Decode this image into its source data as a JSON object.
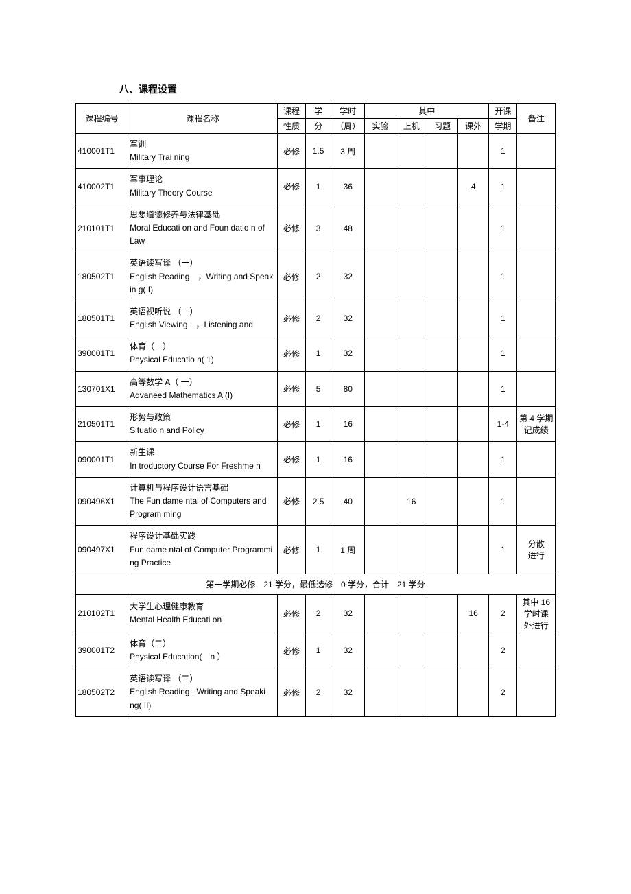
{
  "section_title": "八、课程设置",
  "headers": {
    "code": "课程编号",
    "name": "课程名称",
    "type": "课程\n性质",
    "credits": "学\n分",
    "hours": "学时\n（周）",
    "sub": "其中",
    "exp": "实验",
    "comp": "上机",
    "ex": "习题",
    "out": "课外",
    "sem": "开课\n学期",
    "note": "备注"
  },
  "rows": [
    {
      "code": "410001T1",
      "name_cn": "军训",
      "name_en": "Military Trai ning",
      "type": "必修",
      "credits": "1.5",
      "hours": "3 周",
      "exp": "",
      "comp": "",
      "ex": "",
      "out": "",
      "sem": "1",
      "note": ""
    },
    {
      "code": "410002T1",
      "name_cn": "军事理论",
      "name_en": "Military Theory Course",
      "type": "必修",
      "credits": "1",
      "hours": "36",
      "exp": "",
      "comp": "",
      "ex": "",
      "out": "4",
      "sem": "1",
      "note": ""
    },
    {
      "code": "210101T1",
      "name_cn": "思想道德修养与法律基础",
      "name_en": "Moral Educati on and Foun datio n of Law",
      "type": "必修",
      "credits": "3",
      "hours": "48",
      "exp": "",
      "comp": "",
      "ex": "",
      "out": "",
      "sem": "1",
      "note": ""
    },
    {
      "code": "180502T1",
      "name_cn": "英语读写译 （一）",
      "name_en": "English Reading ，Writing and Speak in g( I)",
      "type": "必修",
      "credits": "2",
      "hours": "32",
      "exp": "",
      "comp": "",
      "ex": "",
      "out": "",
      "sem": "1",
      "note": ""
    },
    {
      "code": "180501T1",
      "name_cn": "英语视听说 （一）",
      "name_en": "English Viewing ，Listening and",
      "type": "必修",
      "credits": "2",
      "hours": "32",
      "exp": "",
      "comp": "",
      "ex": "",
      "out": "",
      "sem": "1",
      "note": ""
    },
    {
      "code": "390001T1",
      "name_cn": "体育（一）",
      "name_en": "Physical Educatio n( 1)",
      "type": "必修",
      "credits": "1",
      "hours": "32",
      "exp": "",
      "comp": "",
      "ex": "",
      "out": "",
      "sem": "1",
      "note": ""
    },
    {
      "code": "130701X1",
      "name_cn": "高等数学 A（ 一）",
      "name_en": "Advaneed Mathematics A (I)",
      "type": "必修",
      "credits": "5",
      "hours": "80",
      "exp": "",
      "comp": "",
      "ex": "",
      "out": "",
      "sem": "1",
      "note": ""
    },
    {
      "code": "210501T1",
      "name_cn": "形势与政策",
      "name_en": "Situatio n and Policy",
      "type": "必修",
      "credits": "1",
      "hours": "16",
      "exp": "",
      "comp": "",
      "ex": "",
      "out": "",
      "sem": "1-4",
      "note": "第 4 学期\n记成绩"
    },
    {
      "code": "090001T1",
      "name_cn": "新生课",
      "name_en": "In troductory Course For Freshme n",
      "type": "必修",
      "credits": "1",
      "hours": "16",
      "exp": "",
      "comp": "",
      "ex": "",
      "out": "",
      "sem": "1",
      "note": ""
    },
    {
      "code": "090496X1",
      "name_cn": "计算机与程序设计语言基础",
      "name_en": "The Fun dame ntal of Computers and Program ming",
      "type": "必修",
      "credits": "2.5",
      "hours": "40",
      "exp": "",
      "comp": "16",
      "ex": "",
      "out": "",
      "sem": "1",
      "note": ""
    },
    {
      "code": "090497X1",
      "name_cn": "程序设计基础实践",
      "name_en": "Fun dame ntal of Computer Programmi ng Practice",
      "type": "必修",
      "credits": "1",
      "hours": "1 周",
      "exp": "",
      "comp": "",
      "ex": "",
      "out": "",
      "sem": "1",
      "note": "分散\n进行"
    }
  ],
  "summary1": "第一学期必修 21 学分，最低选修 0 学分，合计 21 学分",
  "rows2": [
    {
      "code": "210102T1",
      "name_cn": "大学生心理健康教育",
      "name_en": "Mental Health Educati on",
      "type": "必修",
      "credits": "2",
      "hours": "32",
      "exp": "",
      "comp": "",
      "ex": "",
      "out": "16",
      "sem": "2",
      "note": "其中 16\n学时课\n外进行"
    },
    {
      "code": "390001T2",
      "name_cn": "体育（二）",
      "name_en": "Physical Education( n ）",
      "type": "必修",
      "credits": "1",
      "hours": "32",
      "exp": "",
      "comp": "",
      "ex": "",
      "out": "",
      "sem": "2",
      "note": ""
    },
    {
      "code": "180502T2",
      "name_cn": "英语读写译 （二）",
      "name_en": "English Reading , Writing and Speaki ng( II)",
      "type": "必修",
      "credits": "2",
      "hours": "32",
      "exp": "",
      "comp": "",
      "ex": "",
      "out": "",
      "sem": "2",
      "note": ""
    }
  ]
}
